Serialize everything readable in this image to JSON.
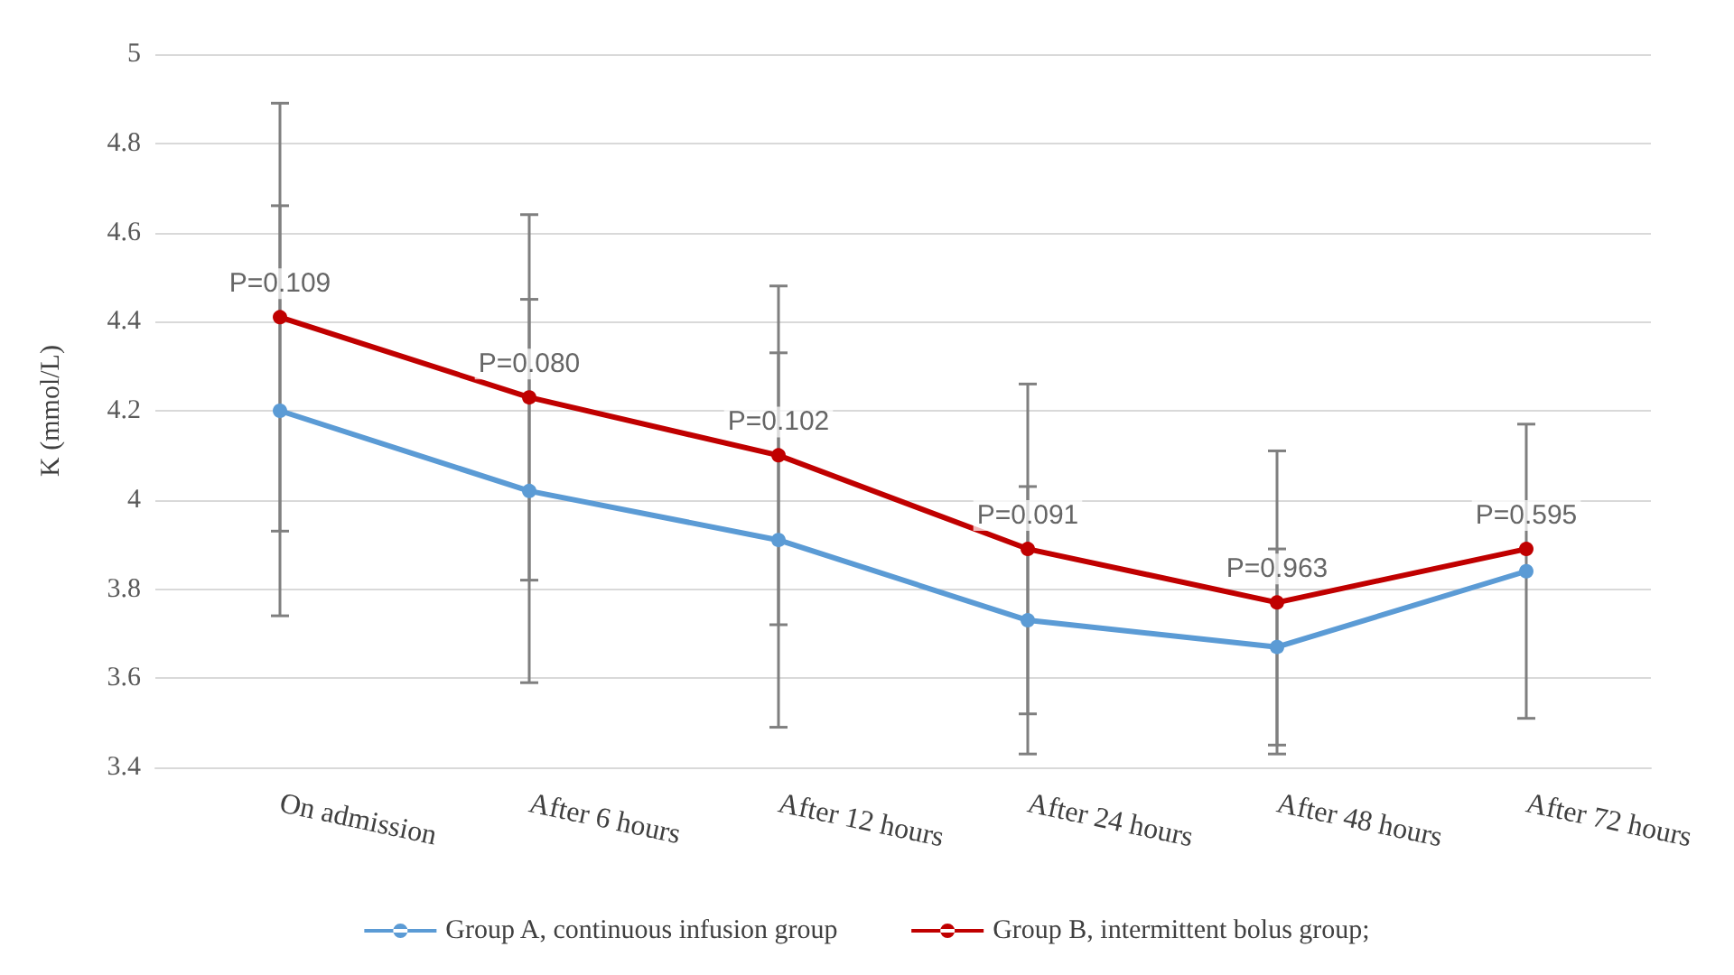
{
  "chart_data": {
    "type": "line",
    "ylabel": "K (mmol/L)",
    "categories": [
      "On admission",
      "After 6 hours",
      "After 12 hours",
      "After 24 hours",
      "After 48 hours",
      "After 72 hours"
    ],
    "series": [
      {
        "name": "Group A, continuous infusion group",
        "color": "#5b9bd5",
        "values": [
          4.2,
          4.02,
          3.91,
          3.73,
          3.67,
          3.84
        ],
        "errors": [
          0.46,
          0.43,
          0.42,
          0.3,
          0.22,
          0.33
        ]
      },
      {
        "name": "Group B, intermittent bolus group;",
        "color": "#c00000",
        "values": [
          4.41,
          4.23,
          4.1,
          3.89,
          3.77,
          3.89
        ],
        "errors": [
          0.48,
          0.41,
          0.38,
          0.37,
          0.34,
          null
        ]
      }
    ],
    "ylim": [
      3.4,
      5
    ],
    "yticks": [
      3.4,
      3.6,
      3.8,
      4,
      4.2,
      4.4,
      4.6,
      4.8,
      5
    ],
    "grid": "y",
    "legend": "bottom",
    "marker": "circle",
    "line_style": "solid",
    "annotations": [
      "P=0.109",
      "P=0.080",
      "P=0.102",
      "P=0.091",
      "P=0.963",
      "P=0.595"
    ]
  }
}
